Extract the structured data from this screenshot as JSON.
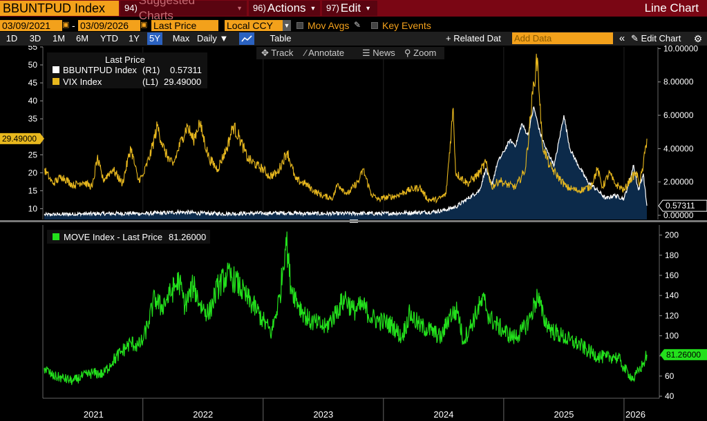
{
  "toolbar": {
    "ticker": "BBUNTPUD Index",
    "menu_suggested": {
      "num": "94)",
      "label": "Suggested Charts"
    },
    "menu_actions": {
      "num": "96)",
      "label": "Actions"
    },
    "menu_edit": {
      "num": "97)",
      "label": "Edit"
    },
    "chart_type": "Line Chart"
  },
  "settings": {
    "start_date": "03/09/2021",
    "end_date": "03/09/2026",
    "date_sep": "-",
    "field": "Last Price",
    "currency": "Local CCY",
    "mov_avgs": "Mov Avgs",
    "key_events": "Key Events"
  },
  "periods": [
    "1D",
    "3D",
    "1M",
    "6M",
    "YTD",
    "1Y",
    "5Y",
    "Max"
  ],
  "selected_period": "5Y",
  "frequency": "Daily",
  "table_label": "Table",
  "related_data": "+ Related Dat",
  "add_data_placeholder": "Add Data",
  "edit_chart": "Edit Chart",
  "tools": {
    "track": "Track",
    "annotate": "Annotate",
    "news": "News",
    "zoom": "Zoom"
  },
  "colors": {
    "bbuntpud": "#ffffff",
    "bbuntpud_fill": "#0c2a4a",
    "vix": "#e8b81e",
    "move": "#23e01c",
    "accent": "#f3a11b"
  },
  "chart_data": [
    {
      "type": "line",
      "title": "Last Price",
      "x_labels": [
        "2021",
        "2022",
        "2023",
        "2024",
        "2025",
        "2026"
      ],
      "x_range": [
        2021.18,
        2026.19
      ],
      "legend": [
        {
          "name": "BBUNTPUD Index",
          "axis": "(R1)",
          "value": "0.57311"
        },
        {
          "name": "VIX Index",
          "axis": "(L1)",
          "value": "29.49000"
        }
      ],
      "left_axis": {
        "ylim": [
          7,
          55
        ],
        "ticks": [
          "10",
          "15",
          "20",
          "25",
          "30",
          "35",
          "40",
          "45",
          "50",
          "55"
        ],
        "last_label": "29.49000"
      },
      "right_axis": {
        "ylim": [
          -0.25,
          10.1
        ],
        "ticks": [
          "0.00000",
          "2.00000",
          "4.00000",
          "6.00000",
          "8.00000",
          "10.00000"
        ],
        "last_label": "0.57311"
      },
      "series": [
        {
          "name": "VIX Index",
          "axis": "left",
          "points": [
            [
              2021.18,
              21
            ],
            [
              2021.25,
              17
            ],
            [
              2021.33,
              19
            ],
            [
              2021.42,
              16.5
            ],
            [
              2021.5,
              17.5
            ],
            [
              2021.58,
              16
            ],
            [
              2021.62,
              24
            ],
            [
              2021.67,
              18
            ],
            [
              2021.75,
              21
            ],
            [
              2021.83,
              17
            ],
            [
              2021.9,
              27
            ],
            [
              2021.96,
              18
            ],
            [
              2022.0,
              19
            ],
            [
              2022.07,
              26
            ],
            [
              2022.12,
              33
            ],
            [
              2022.18,
              26
            ],
            [
              2022.25,
              22
            ],
            [
              2022.33,
              30
            ],
            [
              2022.37,
              33
            ],
            [
              2022.42,
              29
            ],
            [
              2022.47,
              34
            ],
            [
              2022.55,
              24
            ],
            [
              2022.62,
              21
            ],
            [
              2022.7,
              27
            ],
            [
              2022.75,
              33
            ],
            [
              2022.8,
              30
            ],
            [
              2022.87,
              24
            ],
            [
              2022.95,
              22
            ],
            [
              2023.0,
              21
            ],
            [
              2023.05,
              19
            ],
            [
              2023.12,
              20
            ],
            [
              2023.2,
              26
            ],
            [
              2023.27,
              18
            ],
            [
              2023.35,
              17
            ],
            [
              2023.42,
              15
            ],
            [
              2023.5,
              13.5
            ],
            [
              2023.58,
              13
            ],
            [
              2023.62,
              17
            ],
            [
              2023.7,
              14
            ],
            [
              2023.8,
              18
            ],
            [
              2023.83,
              21
            ],
            [
              2023.9,
              14
            ],
            [
              2023.96,
              12.5
            ],
            [
              2024.0,
              13
            ],
            [
              2024.1,
              13.5
            ],
            [
              2024.2,
              15
            ],
            [
              2024.3,
              16
            ],
            [
              2024.37,
              12.5
            ],
            [
              2024.45,
              12.5
            ],
            [
              2024.52,
              14
            ],
            [
              2024.58,
              38
            ],
            [
              2024.6,
              20
            ],
            [
              2024.7,
              17
            ],
            [
              2024.8,
              20
            ],
            [
              2024.85,
              23
            ],
            [
              2024.9,
              16
            ],
            [
              2024.97,
              18
            ],
            [
              2025.0,
              17
            ],
            [
              2025.1,
              16
            ],
            [
              2025.18,
              21
            ],
            [
              2025.25,
              45
            ],
            [
              2025.28,
              52
            ],
            [
              2025.32,
              28
            ],
            [
              2025.38,
              22
            ],
            [
              2025.45,
              19
            ],
            [
              2025.52,
              16
            ],
            [
              2025.62,
              15
            ],
            [
              2025.72,
              16
            ],
            [
              2025.78,
              21
            ],
            [
              2025.82,
              16
            ],
            [
              2025.88,
              20
            ],
            [
              2025.92,
              17
            ],
            [
              2025.97,
              16
            ],
            [
              2026.0,
              15
            ],
            [
              2026.05,
              18
            ],
            [
              2026.1,
              20
            ],
            [
              2026.13,
              17
            ],
            [
              2026.16,
              22
            ],
            [
              2026.19,
              29.49
            ]
          ]
        },
        {
          "name": "BBUNTPUD Index",
          "axis": "right",
          "points": [
            [
              2021.18,
              0.02
            ],
            [
              2021.3,
              0.05
            ],
            [
              2021.5,
              0.08
            ],
            [
              2021.7,
              0.1
            ],
            [
              2021.9,
              0.12
            ],
            [
              2022.0,
              0.1
            ],
            [
              2022.2,
              0.15
            ],
            [
              2022.3,
              0.2
            ],
            [
              2022.5,
              0.12
            ],
            [
              2022.7,
              0.1
            ],
            [
              2022.9,
              0.12
            ],
            [
              2023.0,
              0.12
            ],
            [
              2023.2,
              0.15
            ],
            [
              2023.4,
              0.1
            ],
            [
              2023.6,
              0.1
            ],
            [
              2023.8,
              0.12
            ],
            [
              2024.0,
              0.1
            ],
            [
              2024.2,
              0.15
            ],
            [
              2024.4,
              0.2
            ],
            [
              2024.5,
              0.3
            ],
            [
              2024.6,
              0.5
            ],
            [
              2024.7,
              1.0
            ],
            [
              2024.8,
              1.5
            ],
            [
              2024.85,
              2.8
            ],
            [
              2024.9,
              1.8
            ],
            [
              2024.95,
              3.2
            ],
            [
              2025.0,
              3.8
            ],
            [
              2025.05,
              4.5
            ],
            [
              2025.1,
              4.2
            ],
            [
              2025.15,
              5.5
            ],
            [
              2025.2,
              4.8
            ],
            [
              2025.25,
              6.5
            ],
            [
              2025.3,
              5.0
            ],
            [
              2025.35,
              4.0
            ],
            [
              2025.42,
              3.0
            ],
            [
              2025.5,
              6.0
            ],
            [
              2025.55,
              4.0
            ],
            [
              2025.62,
              3.0
            ],
            [
              2025.7,
              2.0
            ],
            [
              2025.78,
              1.5
            ],
            [
              2025.85,
              1.0
            ],
            [
              2025.92,
              1.2
            ],
            [
              2026.0,
              1.0
            ],
            [
              2026.05,
              2.2
            ],
            [
              2026.08,
              3.0
            ],
            [
              2026.12,
              1.5
            ],
            [
              2026.16,
              2.5
            ],
            [
              2026.19,
              0.57311
            ]
          ]
        }
      ]
    },
    {
      "type": "line",
      "title": "MOVE Index - Last Price",
      "legend": [
        {
          "name": "MOVE Index - Last Price",
          "value": "81.26000"
        }
      ],
      "ylim": [
        38,
        210
      ],
      "y_ticks": [
        "40",
        "60",
        "80",
        "100",
        "120",
        "140",
        "160",
        "180",
        "200"
      ],
      "last_label": "81.26000",
      "series": [
        {
          "name": "MOVE Index",
          "points": [
            [
              2021.18,
              68
            ],
            [
              2021.25,
              60
            ],
            [
              2021.33,
              58
            ],
            [
              2021.42,
              55
            ],
            [
              2021.5,
              60
            ],
            [
              2021.58,
              63
            ],
            [
              2021.67,
              62
            ],
            [
              2021.75,
              75
            ],
            [
              2021.83,
              85
            ],
            [
              2021.9,
              93
            ],
            [
              2021.96,
              90
            ],
            [
              2022.0,
              95
            ],
            [
              2022.05,
              115
            ],
            [
              2022.1,
              138
            ],
            [
              2022.15,
              128
            ],
            [
              2022.22,
              140
            ],
            [
              2022.3,
              155
            ],
            [
              2022.35,
              130
            ],
            [
              2022.42,
              150
            ],
            [
              2022.48,
              130
            ],
            [
              2022.55,
              122
            ],
            [
              2022.62,
              148
            ],
            [
              2022.7,
              160
            ],
            [
              2022.77,
              155
            ],
            [
              2022.85,
              140
            ],
            [
              2022.95,
              125
            ],
            [
              2023.0,
              115
            ],
            [
              2023.07,
              103
            ],
            [
              2023.14,
              140
            ],
            [
              2023.19,
              198
            ],
            [
              2023.23,
              150
            ],
            [
              2023.3,
              130
            ],
            [
              2023.38,
              115
            ],
            [
              2023.45,
              112
            ],
            [
              2023.52,
              108
            ],
            [
              2023.6,
              122
            ],
            [
              2023.68,
              138
            ],
            [
              2023.75,
              125
            ],
            [
              2023.83,
              130
            ],
            [
              2023.9,
              118
            ],
            [
              2023.96,
              115
            ],
            [
              2024.0,
              114
            ],
            [
              2024.08,
              110
            ],
            [
              2024.15,
              98
            ],
            [
              2024.22,
              122
            ],
            [
              2024.3,
              110
            ],
            [
              2024.4,
              105
            ],
            [
              2024.48,
              98
            ],
            [
              2024.55,
              120
            ],
            [
              2024.62,
              125
            ],
            [
              2024.66,
              95
            ],
            [
              2024.72,
              108
            ],
            [
              2024.8,
              130
            ],
            [
              2024.84,
              135
            ],
            [
              2024.88,
              118
            ],
            [
              2024.95,
              110
            ],
            [
              2025.0,
              105
            ],
            [
              2025.08,
              98
            ],
            [
              2025.15,
              104
            ],
            [
              2025.22,
              118
            ],
            [
              2025.28,
              140
            ],
            [
              2025.33,
              118
            ],
            [
              2025.4,
              105
            ],
            [
              2025.48,
              100
            ],
            [
              2025.55,
              95
            ],
            [
              2025.62,
              92
            ],
            [
              2025.7,
              85
            ],
            [
              2025.78,
              80
            ],
            [
              2025.85,
              78
            ],
            [
              2025.92,
              80
            ],
            [
              2025.97,
              75
            ],
            [
              2026.0,
              68
            ],
            [
              2026.04,
              62
            ],
            [
              2026.08,
              57
            ],
            [
              2026.12,
              65
            ],
            [
              2026.16,
              72
            ],
            [
              2026.19,
              81.26
            ]
          ]
        }
      ]
    }
  ]
}
